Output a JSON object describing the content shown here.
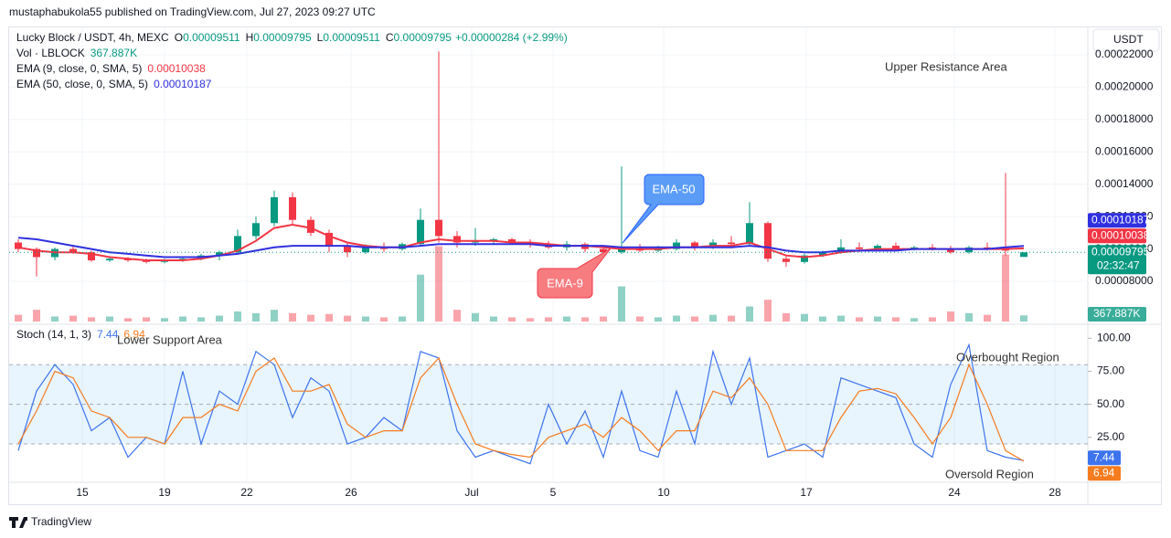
{
  "header": {
    "publisher": "mustaphabukola55 published on TradingView.com, Jul 27, 2023 09:27 UTC",
    "currency": "USDT"
  },
  "chart_data": [
    {
      "type": "candlestick",
      "symbol": "Lucky Block / USDT, 4h, MEXC",
      "ohlc": [
        {
          "label": "O",
          "value": 9.511e-05
        },
        {
          "label": "H",
          "value": 9.795e-05
        },
        {
          "label": "L",
          "value": 9.511e-05
        },
        {
          "label": "C",
          "value": 9.795e-05
        }
      ],
      "change": "+0.00000284 (+2.99%)",
      "countdown": "02:32:47",
      "up_color": "#089981",
      "down_color": "#f23645",
      "grid": true,
      "xlim": [
        0,
        59
      ],
      "xticks": [
        {
          "value": 4,
          "label": "15"
        },
        {
          "value": 8.5,
          "label": "19"
        },
        {
          "value": 13,
          "label": "22"
        },
        {
          "value": 18.7,
          "label": "26"
        },
        {
          "value": 25.3,
          "label": "Jul"
        },
        {
          "value": 29.75,
          "label": "5"
        },
        {
          "value": 35.8,
          "label": "10"
        },
        {
          "value": 43.6,
          "label": "17"
        },
        {
          "value": 51.7,
          "label": "24"
        },
        {
          "value": 57.2,
          "label": "28"
        }
      ],
      "ylim": [
        5.52e-05,
        0.0002369
      ],
      "yticks": [
        {
          "value": 8e-05,
          "label": "0.00008000"
        },
        {
          "value": 0.0001,
          "label": "0.00010000"
        },
        {
          "value": 0.00012,
          "label": "0.00012000"
        },
        {
          "value": 0.00014,
          "label": "0.00014000"
        },
        {
          "value": 0.00016,
          "label": "0.00016000"
        },
        {
          "value": 0.00018,
          "label": "0.00018000"
        },
        {
          "value": 0.0002,
          "label": "0.00020000"
        },
        {
          "value": 0.00022,
          "label": "0.00022000"
        }
      ],
      "open": [
        0.000104,
        0.0001,
        9.5e-05,
        0.0001,
        9.8e-05,
        9.3e-05,
        9.4e-05,
        9.3e-05,
        9.2e-05,
        9.3e-05,
        9.4e-05,
        9.6e-05,
        9.8e-05,
        0.000108,
        0.000116,
        0.000132,
        0.000118,
        0.00011,
        0.000102,
        9.8e-05,
        0.000101,
        0.0001,
        0.000103,
        0.000118,
        0.000108,
        0.000104,
        0.000105,
        0.000106,
        0.000104,
        0.000103,
        0.000101,
        0.000103,
        0.0001,
        9.8e-05,
        0.000101,
        9.9e-05,
        0.0001,
        0.000104,
        0.000101,
        0.000104,
        0.000103,
        0.000116,
        9.4e-05,
        9.2e-05,
        9.6e-05,
        9.8e-05,
        0.000101,
        0.0001,
        0.000102,
        0.0001,
        0.000101,
        0.0001,
        9.8e-05,
        0.000101,
        0.0001,
        9.511e-05
      ],
      "high": [
        0.000106,
        0.000101,
        0.000101,
        0.000102,
        9.9e-05,
        9.5e-05,
        9.5e-05,
        9.4e-05,
        9.4e-05,
        9.5e-05,
        9.7e-05,
        9.9e-05,
        0.000112,
        0.00012,
        0.000136,
        0.000135,
        0.00012,
        0.000112,
        0.000104,
        0.000103,
        0.000104,
        0.000104,
        0.000125,
        0.000222,
        0.000111,
        0.000113,
        0.000107,
        0.000107,
        0.000106,
        0.000105,
        0.000105,
        0.000104,
        0.000102,
        0.000151,
        0.000103,
        0.000102,
        0.000106,
        0.000105,
        0.000106,
        0.000108,
        0.000129,
        0.000117,
        9.6e-05,
        9.7e-05,
        9.9e-05,
        0.000106,
        0.000104,
        0.000103,
        0.000104,
        0.000102,
        0.000103,
        0.000102,
        0.000102,
        0.000104,
        0.000147,
        9.795e-05
      ],
      "low": [
        9.8e-05,
        8.3e-05,
        9.3e-05,
        9.7e-05,
        9.2e-05,
        9.2e-05,
        9.2e-05,
        9.1e-05,
        9.1e-05,
        9.2e-05,
        9.3e-05,
        9.3e-05,
        9.7e-05,
        0.000106,
        0.000114,
        0.000115,
        0.000108,
        9.8e-05,
        9.5e-05,
        9.7e-05,
        9.8e-05,
        9.9e-05,
        0.000102,
        0.000104,
        0.000101,
        0.000102,
        0.000103,
        0.000103,
        0.000101,
        0.0001,
        9.9e-05,
        9.8e-05,
        9.7e-05,
        9.7e-05,
        9.8e-05,
        9.8e-05,
        9.9e-05,
        9.9e-05,
        0.0001,
        0.000102,
        0.000102,
        9.2e-05,
        8.9e-05,
        9.1e-05,
        9.5e-05,
        9.7e-05,
        9.8e-05,
        9.9e-05,
        9.9e-05,
        9.9e-05,
        9.9e-05,
        9.7e-05,
        9.7e-05,
        9.9e-05,
        9.6e-05,
        9.511e-05
      ],
      "close": [
        0.0001,
        9.5e-05,
        0.0001,
        9.8e-05,
        9.3e-05,
        9.4e-05,
        9.3e-05,
        9.2e-05,
        9.3e-05,
        9.4e-05,
        9.6e-05,
        9.8e-05,
        0.000108,
        0.000116,
        0.000132,
        0.000118,
        0.00011,
        0.000102,
        9.8e-05,
        0.000101,
        0.0001,
        0.000103,
        0.000118,
        0.000108,
        0.000104,
        0.000105,
        0.000106,
        0.000104,
        0.000103,
        0.000101,
        0.000103,
        0.0001,
        9.8e-05,
        0.000101,
        9.9e-05,
        0.0001,
        0.000104,
        0.000101,
        0.000104,
        0.000103,
        0.000116,
        9.4e-05,
        9.2e-05,
        9.6e-05,
        9.8e-05,
        0.000101,
        0.0001,
        0.000102,
        0.0001,
        0.000101,
        0.0001,
        9.8e-05,
        0.000101,
        0.0001,
        9.9e-05,
        9.795e-05
      ],
      "volume": {
        "name": "Vol · LBLOCK",
        "ylim": [
          0,
          6000000
        ],
        "last_value_label": "367.887K",
        "values": [
          400000,
          700000,
          300000,
          350000,
          250000,
          300000,
          200000,
          250000,
          200000,
          300000,
          250000,
          350000,
          600000,
          500000,
          700000,
          500000,
          400000,
          450000,
          350000,
          300000,
          250000,
          300000,
          2800000,
          4500000,
          700000,
          500000,
          300000,
          250000,
          200000,
          250000,
          300000,
          250000,
          300000,
          2100000,
          300000,
          250000,
          350000,
          300000,
          400000,
          350000,
          900000,
          1300000,
          500000,
          450000,
          300000,
          350000,
          250000,
          300000,
          250000,
          200000,
          250000,
          600000,
          500000,
          400000,
          4000000,
          367887
        ]
      },
      "series": [
        {
          "name": "EMA (9, close, 0, SMA, 5)",
          "color": "#f23645",
          "values": [
            0.000101,
            9.9e-05,
            9.8e-05,
            9.8e-05,
            9.7e-05,
            9.5e-05,
            9.4e-05,
            9.3e-05,
            9.3e-05,
            9.3e-05,
            9.4e-05,
            9.6e-05,
            9.9e-05,
            0.000105,
            0.000113,
            0.000115,
            0.000113,
            0.000108,
            0.000104,
            0.000102,
            0.000101,
            0.000101,
            0.000104,
            0.000106,
            0.000105,
            0.000105,
            0.000105,
            0.000104,
            0.000104,
            0.000103,
            0.000102,
            0.000102,
            0.000101,
            0.0001,
            0.0001,
            0.0001,
            0.000101,
            0.000101,
            0.000102,
            0.000102,
            0.000104,
            0.0001,
            9.6e-05,
            9.5e-05,
            9.6e-05,
            9.8e-05,
            9.9e-05,
            0.0001,
            0.0001,
            0.0001,
            0.0001,
            0.0001,
            0.0001,
            0.0001,
            0.0001,
            0.00010038
          ]
        },
        {
          "name": "EMA (50, close, 0, SMA, 5)",
          "color": "#3030e0",
          "values": [
            0.000107,
            0.000106,
            0.000104,
            0.000102,
            0.0001,
            9.8e-05,
            9.7e-05,
            9.6e-05,
            9.5e-05,
            9.5e-05,
            9.5e-05,
            9.6e-05,
            9.7e-05,
            9.9e-05,
            0.000101,
            0.000102,
            0.000102,
            0.000102,
            0.000102,
            0.000101,
            0.000101,
            0.000101,
            0.000102,
            0.000103,
            0.000103,
            0.000103,
            0.000103,
            0.000103,
            0.000103,
            0.000102,
            0.000102,
            0.000102,
            0.000102,
            0.000101,
            0.000101,
            0.000101,
            0.000101,
            0.000101,
            0.000101,
            0.000101,
            0.000102,
            0.000101,
            9.9e-05,
            9.8e-05,
            9.8e-05,
            9.9e-05,
            9.9e-05,
            9.9e-05,
            9.9e-05,
            0.0001,
            0.0001,
            0.0001,
            0.0001,
            0.0001,
            0.000101,
            0.00010187
          ]
        }
      ],
      "annotations": [
        "Upper Resistance Area",
        "EMA-50",
        "EMA-9"
      ]
    },
    {
      "type": "line",
      "title": "Stoch (14, 1, 3)",
      "xlim": [
        0,
        59
      ],
      "ylim": [
        -9,
        108.5
      ],
      "yticks": [
        {
          "value": 25,
          "label": "25.00"
        },
        {
          "value": 50,
          "label": "50.00"
        },
        {
          "value": 75,
          "label": "75.00"
        },
        {
          "value": 100,
          "label": "100.00"
        }
      ],
      "bands": [
        20,
        50,
        80
      ],
      "series": [
        {
          "color": "#3d74ee",
          "values": [
            15,
            60,
            80,
            65,
            30,
            40,
            10,
            25,
            20,
            75,
            20,
            60,
            50,
            90,
            80,
            40,
            70,
            60,
            20,
            25,
            40,
            30,
            90,
            85,
            30,
            10,
            15,
            10,
            5,
            50,
            20,
            45,
            10,
            60,
            15,
            10,
            60,
            20,
            90,
            50,
            85,
            10,
            15,
            20,
            10,
            70,
            65,
            60,
            55,
            20,
            10,
            65,
            95,
            15,
            10,
            7.44
          ]
        },
        {
          "color": "#f57c1f",
          "values": [
            20,
            45,
            75,
            70,
            45,
            40,
            25,
            25,
            20,
            40,
            40,
            50,
            45,
            75,
            85,
            60,
            60,
            65,
            35,
            25,
            30,
            30,
            70,
            85,
            50,
            20,
            15,
            12,
            10,
            25,
            30,
            35,
            25,
            40,
            30,
            15,
            30,
            30,
            60,
            55,
            70,
            50,
            15,
            15,
            15,
            40,
            60,
            62,
            58,
            40,
            20,
            40,
            80,
            50,
            15,
            6.94
          ]
        }
      ],
      "annotations": [
        "Lower Support Area",
        "Overbought Region",
        "Oversold Region"
      ]
    }
  ],
  "footer": {
    "brand": "TradingView"
  }
}
